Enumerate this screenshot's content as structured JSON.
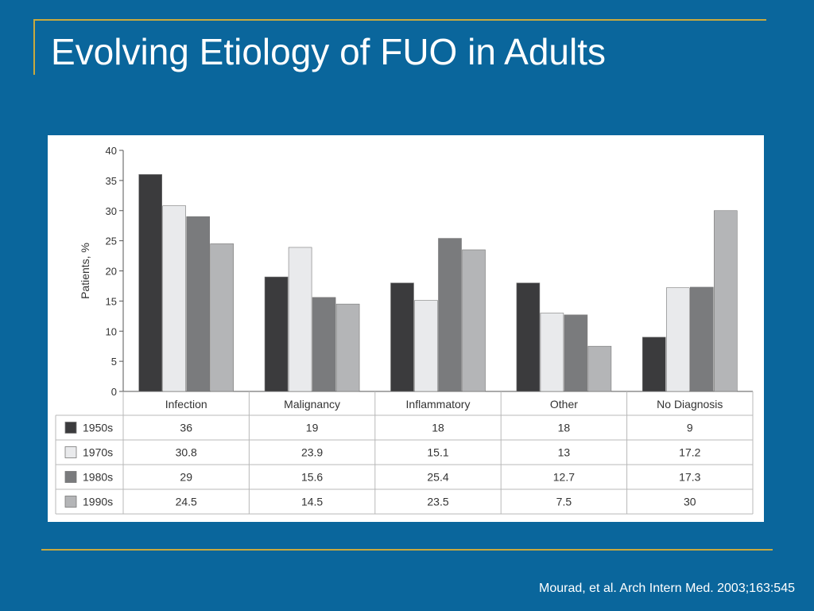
{
  "slide": {
    "title": "Evolving Etiology of FUO in Adults",
    "citation": "Mourad, et al. Arch Intern Med. 2003;163:545"
  },
  "colors": {
    "background": "#0a669c",
    "accent_line": "#c8a93e",
    "series": [
      "#3b3b3d",
      "#e9eaec",
      "#7a7b7d",
      "#b4b5b7"
    ]
  },
  "chart_data": {
    "type": "bar",
    "title": "",
    "xlabel": "",
    "ylabel": "Patients, %",
    "ylim": [
      0,
      40
    ],
    "yticks": [
      0,
      5,
      10,
      15,
      20,
      25,
      30,
      35,
      40
    ],
    "grid": false,
    "legend": "table below chart",
    "categories": [
      "Infection",
      "Malignancy",
      "Inflammatory",
      "Other",
      "No Diagnosis"
    ],
    "series": [
      {
        "name": "1950s",
        "values": [
          36,
          19,
          18,
          18,
          9
        ]
      },
      {
        "name": "1970s",
        "values": [
          30.8,
          23.9,
          15.1,
          13,
          17.2
        ]
      },
      {
        "name": "1980s",
        "values": [
          29,
          15.6,
          25.4,
          12.7,
          17.3
        ]
      },
      {
        "name": "1990s",
        "values": [
          24.5,
          14.5,
          23.5,
          7.5,
          30
        ]
      }
    ],
    "table_values": [
      [
        "36",
        "19",
        "18",
        "18",
        "9"
      ],
      [
        "30.8",
        "23.9",
        "15.1",
        "13",
        "17.2"
      ],
      [
        "29",
        "15.6",
        "25.4",
        "12.7",
        "17.3"
      ],
      [
        "24.5",
        "14.5",
        "23.5",
        "7.5",
        "30"
      ]
    ]
  }
}
